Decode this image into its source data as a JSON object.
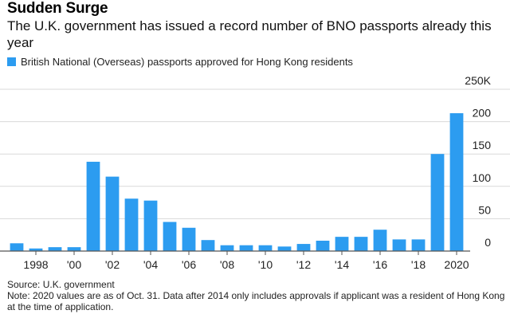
{
  "title": "Sudden Surge",
  "subtitle": "The U.K. government has issued a record number of BNO passports already this year",
  "legend_label": "British National (Overseas) passports approved for Hong Kong residents",
  "source": "Source: U.K. government",
  "note": "Note: 2020 values are as of Oct. 31. Data after 2014 only includes approvals if applicant was a resident of Hong Kong at the time of application.",
  "colors": {
    "bar": "#2c9cf0",
    "grid": "#d9d9d9",
    "axis": "#555555"
  },
  "chart_data": {
    "type": "bar",
    "title": "",
    "xlabel": "",
    "ylabel": "",
    "ylim": [
      0,
      250
    ],
    "y_tick_values": [
      0,
      50,
      100,
      150,
      200,
      250
    ],
    "y_tick_labels": [
      "0",
      "50",
      "100",
      "150",
      "200",
      "250K"
    ],
    "x": [
      1997,
      1998,
      1999,
      2000,
      2001,
      2002,
      2003,
      2004,
      2005,
      2006,
      2007,
      2008,
      2009,
      2010,
      2011,
      2012,
      2013,
      2014,
      2015,
      2016,
      2017,
      2018,
      2019,
      2020
    ],
    "values": [
      12,
      4,
      6,
      6,
      138,
      115,
      81,
      78,
      45,
      36,
      17,
      9,
      9,
      9,
      7,
      11,
      16,
      22,
      22,
      33,
      18,
      18,
      150,
      213
    ],
    "x_tick_values": [
      1998,
      2000,
      2002,
      2004,
      2006,
      2008,
      2010,
      2012,
      2014,
      2016,
      2018,
      2020
    ],
    "x_tick_labels": [
      "1998",
      "'00",
      "'02",
      "'04",
      "'06",
      "'08",
      "'10",
      "'12",
      "'14",
      "'16",
      "'18",
      "2020"
    ],
    "grid": true
  }
}
